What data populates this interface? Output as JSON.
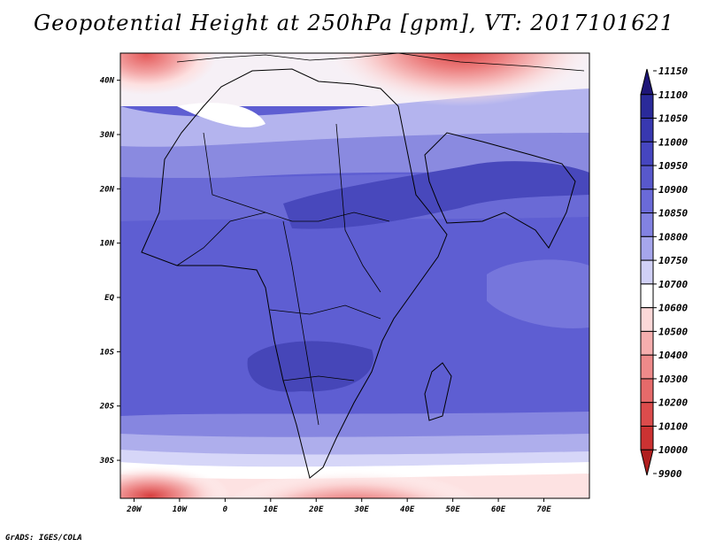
{
  "title": "Geopotential Height at 250hPa [gpm], VT: 2017101621",
  "credit": "GrADS: IGES/COLA",
  "map": {
    "lon_range": [
      -23,
      80
    ],
    "lat_range": [
      -37,
      45
    ],
    "lon_ticks": [
      {
        "value": -20,
        "label": "20W"
      },
      {
        "value": -10,
        "label": "10W"
      },
      {
        "value": 0,
        "label": "0"
      },
      {
        "value": 10,
        "label": "10E"
      },
      {
        "value": 20,
        "label": "20E"
      },
      {
        "value": 30,
        "label": "30E"
      },
      {
        "value": 40,
        "label": "40E"
      },
      {
        "value": 50,
        "label": "50E"
      },
      {
        "value": 60,
        "label": "60E"
      },
      {
        "value": 70,
        "label": "70E"
      }
    ],
    "lat_ticks": [
      {
        "value": 40,
        "label": "40N"
      },
      {
        "value": 30,
        "label": "30N"
      },
      {
        "value": 20,
        "label": "20N"
      },
      {
        "value": 10,
        "label": "10N"
      },
      {
        "value": 0,
        "label": "EQ"
      },
      {
        "value": -10,
        "label": "10S"
      },
      {
        "value": -20,
        "label": "20S"
      },
      {
        "value": -30,
        "label": "30S"
      }
    ]
  },
  "colorbar": {
    "labels": [
      "11150",
      "11100",
      "11050",
      "11000",
      "10950",
      "10900",
      "10850",
      "10800",
      "10750",
      "10700",
      "10600",
      "10500",
      "10400",
      "10300",
      "10200",
      "10100",
      "10000",
      "9900"
    ],
    "colors": [
      "#1e1678",
      "#2a2a9a",
      "#3838b0",
      "#4646c0",
      "#5858cc",
      "#6a6ad8",
      "#8282e2",
      "#a6a6ec",
      "#d0d0f6",
      "#ffffff",
      "#fcd8d8",
      "#f6aeae",
      "#ee8a8a",
      "#e66a6a",
      "#dc4c4c",
      "#cc3232",
      "#b01e1e"
    ]
  }
}
